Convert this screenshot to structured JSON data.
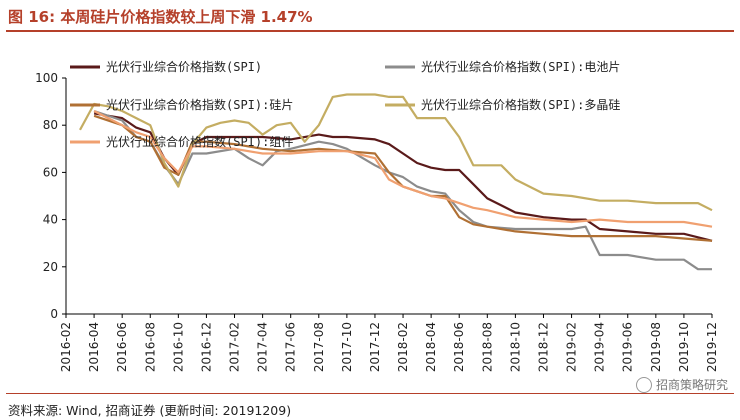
{
  "header": {
    "title": "图 16:  本周硅片价格指数较上周下滑 1.47%"
  },
  "footer": {
    "source": "资料来源: Wind, 招商证券 (更新时间: 20191209)",
    "watermark": "招商策略研究"
  },
  "chart_data": {
    "type": "line",
    "ylim": [
      0,
      100
    ],
    "yticks": [
      0,
      20,
      40,
      60,
      80,
      100
    ],
    "x_ticks": [
      "2016-02",
      "2016-04",
      "2016-06",
      "2016-08",
      "2016-10",
      "2016-12",
      "2017-02",
      "2017-04",
      "2017-06",
      "2017-08",
      "2017-10",
      "2017-12",
      "2018-02",
      "2018-04",
      "2018-06",
      "2018-08",
      "2018-10",
      "2018-12",
      "2019-02",
      "2019-04",
      "2019-06",
      "2019-08",
      "2019-10",
      "2019-12"
    ],
    "legend_position": "top",
    "series": [
      {
        "name": "光伏行业综合价格指数(SPI)",
        "color": "#5a1a1a",
        "points": [
          [
            "2016-04",
            85
          ],
          [
            "2016-06",
            83
          ],
          [
            "2016-07",
            79
          ],
          [
            "2016-08",
            77
          ],
          [
            "2016-09",
            66
          ],
          [
            "2016-10",
            59
          ],
          [
            "2016-11",
            72
          ],
          [
            "2016-12",
            75
          ],
          [
            "2017-02",
            75
          ],
          [
            "2017-04",
            75
          ],
          [
            "2017-06",
            74
          ],
          [
            "2017-08",
            76
          ],
          [
            "2017-09",
            75
          ],
          [
            "2017-10",
            75
          ],
          [
            "2017-12",
            74
          ],
          [
            "2018-01",
            72
          ],
          [
            "2018-02",
            68
          ],
          [
            "2018-03",
            64
          ],
          [
            "2018-04",
            62
          ],
          [
            "2018-05",
            61
          ],
          [
            "2018-06",
            61
          ],
          [
            "2018-07",
            55
          ],
          [
            "2018-08",
            49
          ],
          [
            "2018-09",
            46
          ],
          [
            "2018-10",
            43
          ],
          [
            "2018-12",
            41
          ],
          [
            "2019-02",
            40
          ],
          [
            "2019-03",
            40
          ],
          [
            "2019-04",
            36
          ],
          [
            "2019-06",
            35
          ],
          [
            "2019-08",
            34
          ],
          [
            "2019-10",
            34
          ],
          [
            "2019-12",
            31
          ]
        ]
      },
      {
        "name": "光伏行业综合价格指数(SPI):电池片",
        "color": "#8c8c8c",
        "points": [
          [
            "2016-04",
            86
          ],
          [
            "2016-06",
            82
          ],
          [
            "2016-07",
            75
          ],
          [
            "2016-08",
            73
          ],
          [
            "2016-09",
            63
          ],
          [
            "2016-10",
            55
          ],
          [
            "2016-11",
            68
          ],
          [
            "2016-12",
            68
          ],
          [
            "2017-02",
            70
          ],
          [
            "2017-03",
            66
          ],
          [
            "2017-04",
            63
          ],
          [
            "2017-05",
            69
          ],
          [
            "2017-06",
            70
          ],
          [
            "2017-08",
            73
          ],
          [
            "2017-09",
            72
          ],
          [
            "2017-10",
            70
          ],
          [
            "2017-12",
            63
          ],
          [
            "2018-01",
            60
          ],
          [
            "2018-02",
            58
          ],
          [
            "2018-03",
            54
          ],
          [
            "2018-04",
            52
          ],
          [
            "2018-05",
            51
          ],
          [
            "2018-06",
            44
          ],
          [
            "2018-07",
            39
          ],
          [
            "2018-08",
            37
          ],
          [
            "2018-10",
            36
          ],
          [
            "2018-12",
            36
          ],
          [
            "2019-02",
            36
          ],
          [
            "2019-03",
            37
          ],
          [
            "2019-04",
            25
          ],
          [
            "2019-06",
            25
          ],
          [
            "2019-08",
            23
          ],
          [
            "2019-10",
            23
          ],
          [
            "2019-11",
            19
          ],
          [
            "2019-12",
            19
          ]
        ]
      },
      {
        "name": "光伏行业综合价格指数(SPI):硅片",
        "color": "#b07034",
        "points": [
          [
            "2016-04",
            84
          ],
          [
            "2016-06",
            80
          ],
          [
            "2016-07",
            75
          ],
          [
            "2016-08",
            73
          ],
          [
            "2016-09",
            62
          ],
          [
            "2016-10",
            59
          ],
          [
            "2016-11",
            73
          ],
          [
            "2016-12",
            73
          ],
          [
            "2017-02",
            72
          ],
          [
            "2017-04",
            70
          ],
          [
            "2017-06",
            69
          ],
          [
            "2017-08",
            70
          ],
          [
            "2017-10",
            69
          ],
          [
            "2017-12",
            68
          ],
          [
            "2018-01",
            60
          ],
          [
            "2018-02",
            54
          ],
          [
            "2018-03",
            52
          ],
          [
            "2018-04",
            50
          ],
          [
            "2018-05",
            50
          ],
          [
            "2018-06",
            41
          ],
          [
            "2018-07",
            38
          ],
          [
            "2018-08",
            37
          ],
          [
            "2018-10",
            35
          ],
          [
            "2018-12",
            34
          ],
          [
            "2019-02",
            33
          ],
          [
            "2019-04",
            33
          ],
          [
            "2019-06",
            33
          ],
          [
            "2019-08",
            33
          ],
          [
            "2019-10",
            32
          ],
          [
            "2019-12",
            31
          ]
        ]
      },
      {
        "name": "光伏行业综合价格指数(SPI):多晶硅",
        "color": "#c4ad62",
        "points": [
          [
            "2016-03",
            78
          ],
          [
            "2016-04",
            89
          ],
          [
            "2016-05",
            88
          ],
          [
            "2016-06",
            86
          ],
          [
            "2016-07",
            83
          ],
          [
            "2016-08",
            80
          ],
          [
            "2016-09",
            64
          ],
          [
            "2016-10",
            54
          ],
          [
            "2016-11",
            72
          ],
          [
            "2016-12",
            79
          ],
          [
            "2017-01",
            81
          ],
          [
            "2017-02",
            82
          ],
          [
            "2017-03",
            81
          ],
          [
            "2017-04",
            76
          ],
          [
            "2017-05",
            80
          ],
          [
            "2017-06",
            81
          ],
          [
            "2017-07",
            73
          ],
          [
            "2017-08",
            80
          ],
          [
            "2017-09",
            92
          ],
          [
            "2017-10",
            93
          ],
          [
            "2017-12",
            93
          ],
          [
            "2018-01",
            92
          ],
          [
            "2018-02",
            92
          ],
          [
            "2018-03",
            83
          ],
          [
            "2018-05",
            83
          ],
          [
            "2018-06",
            75
          ],
          [
            "2018-07",
            63
          ],
          [
            "2018-08",
            63
          ],
          [
            "2018-09",
            63
          ],
          [
            "2018-10",
            57
          ],
          [
            "2018-12",
            51
          ],
          [
            "2019-02",
            50
          ],
          [
            "2019-04",
            48
          ],
          [
            "2019-06",
            48
          ],
          [
            "2019-08",
            47
          ],
          [
            "2019-10",
            47
          ],
          [
            "2019-11",
            47
          ],
          [
            "2019-12",
            44
          ]
        ]
      },
      {
        "name": "光伏行业综合价格指数(SPI):组件",
        "color": "#f0a070",
        "points": [
          [
            "2016-04",
            86
          ],
          [
            "2016-06",
            80
          ],
          [
            "2016-07",
            77
          ],
          [
            "2016-08",
            75
          ],
          [
            "2016-09",
            66
          ],
          [
            "2016-10",
            60
          ],
          [
            "2016-11",
            71
          ],
          [
            "2016-12",
            71
          ],
          [
            "2017-02",
            70
          ],
          [
            "2017-04",
            68
          ],
          [
            "2017-06",
            68
          ],
          [
            "2017-08",
            69
          ],
          [
            "2017-10",
            69
          ],
          [
            "2017-12",
            66
          ],
          [
            "2018-01",
            57
          ],
          [
            "2018-02",
            54
          ],
          [
            "2018-03",
            52
          ],
          [
            "2018-04",
            50
          ],
          [
            "2018-05",
            49
          ],
          [
            "2018-06",
            47
          ],
          [
            "2018-07",
            45
          ],
          [
            "2018-08",
            44
          ],
          [
            "2018-10",
            41
          ],
          [
            "2018-12",
            40
          ],
          [
            "2019-02",
            39
          ],
          [
            "2019-04",
            40
          ],
          [
            "2019-06",
            39
          ],
          [
            "2019-08",
            39
          ],
          [
            "2019-10",
            39
          ],
          [
            "2019-12",
            37
          ]
        ]
      }
    ]
  }
}
